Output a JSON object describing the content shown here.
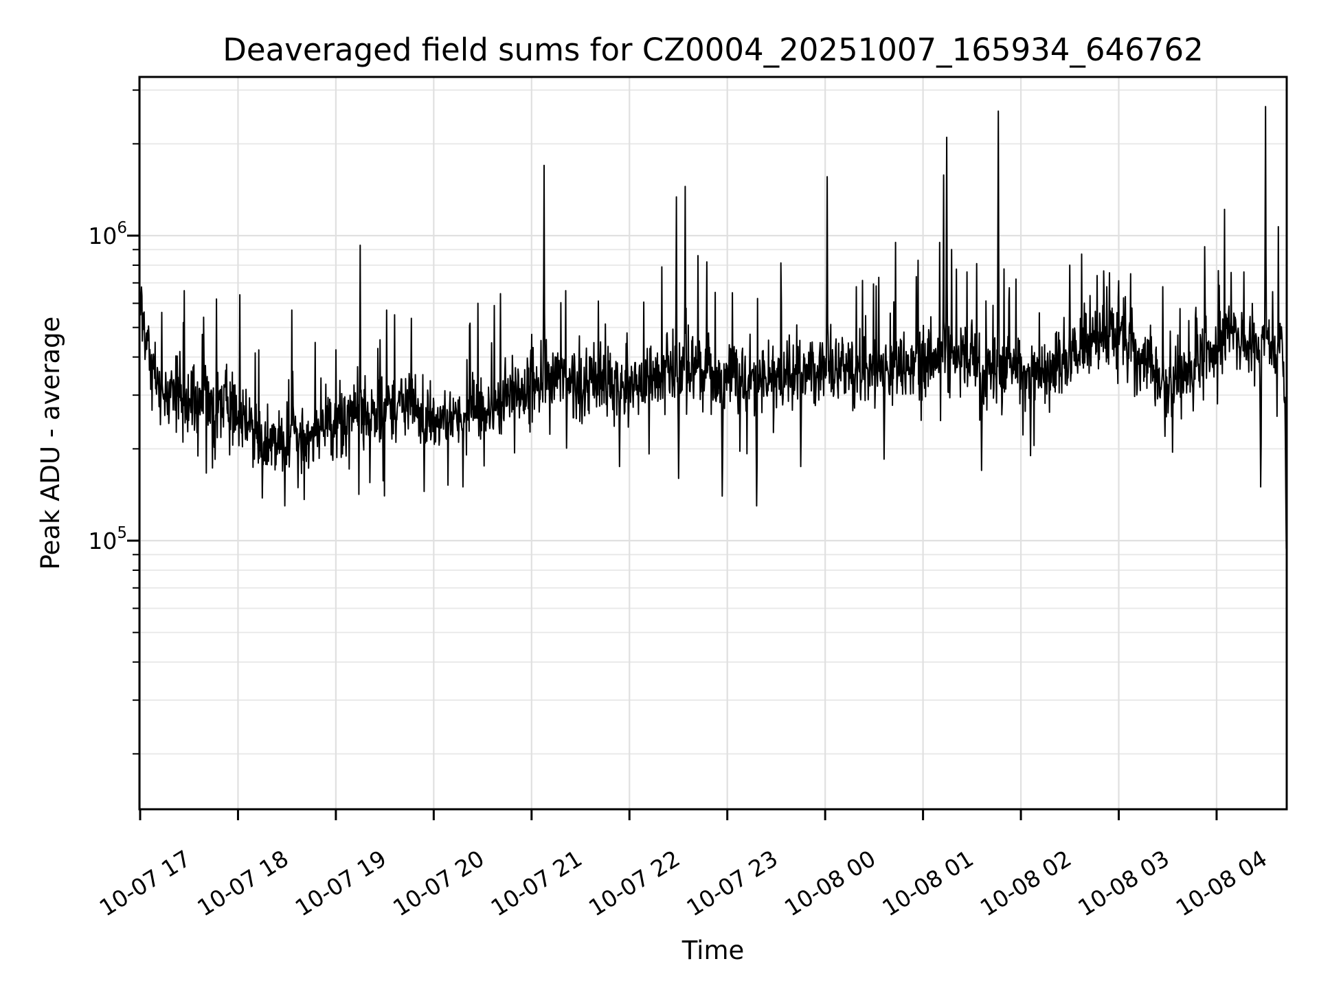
{
  "page": {
    "background": "#ffffff"
  },
  "chart_data": {
    "type": "line",
    "title": "Deaveraged field sums for CZ0004_20251007_165934_646762",
    "xlabel": "Time",
    "ylabel": "Peak ADU - average",
    "legend": null,
    "grid": true,
    "y_scale": "log",
    "ylim": [
      13200,
      3310000
    ],
    "xlim_hours_from_first_tick": [
      -0.007,
      11.712
    ],
    "x_tick_labels": [
      "10-07 17",
      "10-07 18",
      "10-07 19",
      "10-07 20",
      "10-07 21",
      "10-07 22",
      "10-07 23",
      "10-08 00",
      "10-08 01",
      "10-08 02",
      "10-08 03",
      "10-08 04"
    ],
    "x_tick_hours": [
      0,
      1,
      2,
      3,
      4,
      5,
      6,
      7,
      8,
      9,
      10,
      11
    ],
    "y_major_ticks": [
      {
        "value": 100000,
        "mantissa": "10",
        "exponent": "5"
      },
      {
        "value": 1000000,
        "mantissa": "10",
        "exponent": "6"
      }
    ],
    "y_minor_tick_values": [
      20000,
      30000,
      40000,
      50000,
      60000,
      70000,
      80000,
      90000,
      200000,
      300000,
      400000,
      500000,
      600000,
      700000,
      800000,
      900000,
      2000000,
      3000000
    ],
    "colors": {
      "line": "#000000",
      "grid_major": "#e0e0e0",
      "grid_minor": "#e7e7e7",
      "spine": "#000000",
      "text": "#000000",
      "background": "#ffffff"
    },
    "series": [
      {
        "name": "deaveraged_field_sum",
        "samples": 2600,
        "noise_sigma_dex": 0.055,
        "baseline_keyframes": [
          [
            0.0,
            690000
          ],
          [
            0.04,
            520000
          ],
          [
            0.1,
            380000
          ],
          [
            0.2,
            300000
          ],
          [
            0.4,
            285000
          ],
          [
            0.6,
            295000
          ],
          [
            0.85,
            275000
          ],
          [
            1.1,
            245000
          ],
          [
            1.3,
            212000
          ],
          [
            1.55,
            215000
          ],
          [
            1.8,
            225000
          ],
          [
            2.1,
            255000
          ],
          [
            2.4,
            268000
          ],
          [
            2.7,
            278000
          ],
          [
            3.0,
            262000
          ],
          [
            3.25,
            258000
          ],
          [
            3.55,
            275000
          ],
          [
            3.85,
            305000
          ],
          [
            4.15,
            330000
          ],
          [
            4.45,
            338000
          ],
          [
            4.75,
            322000
          ],
          [
            5.05,
            318000
          ],
          [
            5.35,
            352000
          ],
          [
            5.65,
            368000
          ],
          [
            5.95,
            342000
          ],
          [
            6.25,
            330000
          ],
          [
            6.55,
            348000
          ],
          [
            6.85,
            355000
          ],
          [
            7.15,
            360000
          ],
          [
            7.45,
            358000
          ],
          [
            7.75,
            382000
          ],
          [
            8.05,
            398000
          ],
          [
            8.25,
            430000
          ],
          [
            8.5,
            392000
          ],
          [
            8.75,
            362000
          ],
          [
            9.0,
            356000
          ],
          [
            9.3,
            382000
          ],
          [
            9.6,
            415000
          ],
          [
            9.85,
            468000
          ],
          [
            10.1,
            455000
          ],
          [
            10.3,
            388000
          ],
          [
            10.5,
            312000
          ],
          [
            10.7,
            362000
          ],
          [
            10.95,
            425000
          ],
          [
            11.15,
            488000
          ],
          [
            11.35,
            452000
          ],
          [
            11.55,
            445000
          ],
          [
            11.66,
            455000
          ],
          [
            11.7,
            300000
          ],
          [
            11.712,
            94000
          ]
        ],
        "spikes": [
          [
            0.22,
            560000
          ],
          [
            0.45,
            660000
          ],
          [
            0.65,
            540000
          ],
          [
            0.78,
            620000
          ],
          [
            1.02,
            640000
          ],
          [
            1.55,
            570000
          ],
          [
            2.25,
            930000
          ],
          [
            2.52,
            570000
          ],
          [
            2.6,
            550000
          ],
          [
            3.45,
            600000
          ],
          [
            3.62,
            590000
          ],
          [
            4.13,
            1700000
          ],
          [
            4.35,
            660000
          ],
          [
            4.68,
            610000
          ],
          [
            5.33,
            790000
          ],
          [
            5.48,
            1340000
          ],
          [
            5.57,
            1450000
          ],
          [
            5.7,
            860000
          ],
          [
            5.79,
            820000
          ],
          [
            6.05,
            650000
          ],
          [
            6.55,
            600000
          ],
          [
            7.02,
            1560000
          ],
          [
            7.32,
            680000
          ],
          [
            7.55,
            730000
          ],
          [
            7.72,
            950000
          ],
          [
            7.95,
            830000
          ],
          [
            8.17,
            950000
          ],
          [
            8.21,
            1580000
          ],
          [
            8.24,
            2100000
          ],
          [
            8.29,
            900000
          ],
          [
            8.45,
            760000
          ],
          [
            8.77,
            2560000
          ],
          [
            8.95,
            720000
          ],
          [
            9.5,
            800000
          ],
          [
            9.62,
            870000
          ],
          [
            9.78,
            740000
          ],
          [
            9.88,
            680000
          ],
          [
            10.12,
            750000
          ],
          [
            10.45,
            680000
          ],
          [
            10.88,
            920000
          ],
          [
            11.08,
            1220000
          ],
          [
            11.28,
            760000
          ],
          [
            11.5,
            2650000
          ],
          [
            11.63,
            1070000
          ]
        ],
        "dips": [
          [
            1.25,
            138000
          ],
          [
            1.48,
            130000
          ],
          [
            2.35,
            155000
          ],
          [
            2.9,
            145000
          ],
          [
            3.3,
            150000
          ],
          [
            4.9,
            175000
          ],
          [
            5.5,
            160000
          ],
          [
            5.95,
            140000
          ],
          [
            6.3,
            130000
          ],
          [
            6.75,
            175000
          ],
          [
            7.6,
            185000
          ],
          [
            8.6,
            170000
          ],
          [
            9.1,
            190000
          ],
          [
            10.55,
            195000
          ],
          [
            11.45,
            150000
          ]
        ],
        "last_value": 94000
      }
    ]
  }
}
